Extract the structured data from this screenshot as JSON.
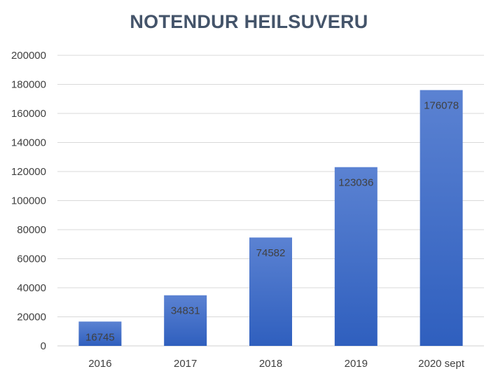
{
  "chart_data": {
    "type": "bar",
    "title": "NOTENDUR HEILSUVERU",
    "categories": [
      "2016",
      "2017",
      "2018",
      "2019",
      "2020 sept"
    ],
    "values": [
      16745,
      34831,
      74582,
      123036,
      176078
    ],
    "data_labels": [
      "16745",
      "34831",
      "74582",
      "123036",
      "176078"
    ],
    "ylim": [
      0,
      200000
    ],
    "yticks": [
      0,
      20000,
      40000,
      60000,
      80000,
      100000,
      120000,
      140000,
      160000,
      180000,
      200000
    ],
    "ytick_labels": [
      "0",
      "20000",
      "40000",
      "60000",
      "80000",
      "100000",
      "120000",
      "140000",
      "160000",
      "180000",
      "200000"
    ],
    "grid": true,
    "legend": "none",
    "bar_color_top": "#5b82d2",
    "bar_color_bottom": "#2f5fbe",
    "title_color": "#44546a",
    "grid_color": "#d9d9d9"
  }
}
